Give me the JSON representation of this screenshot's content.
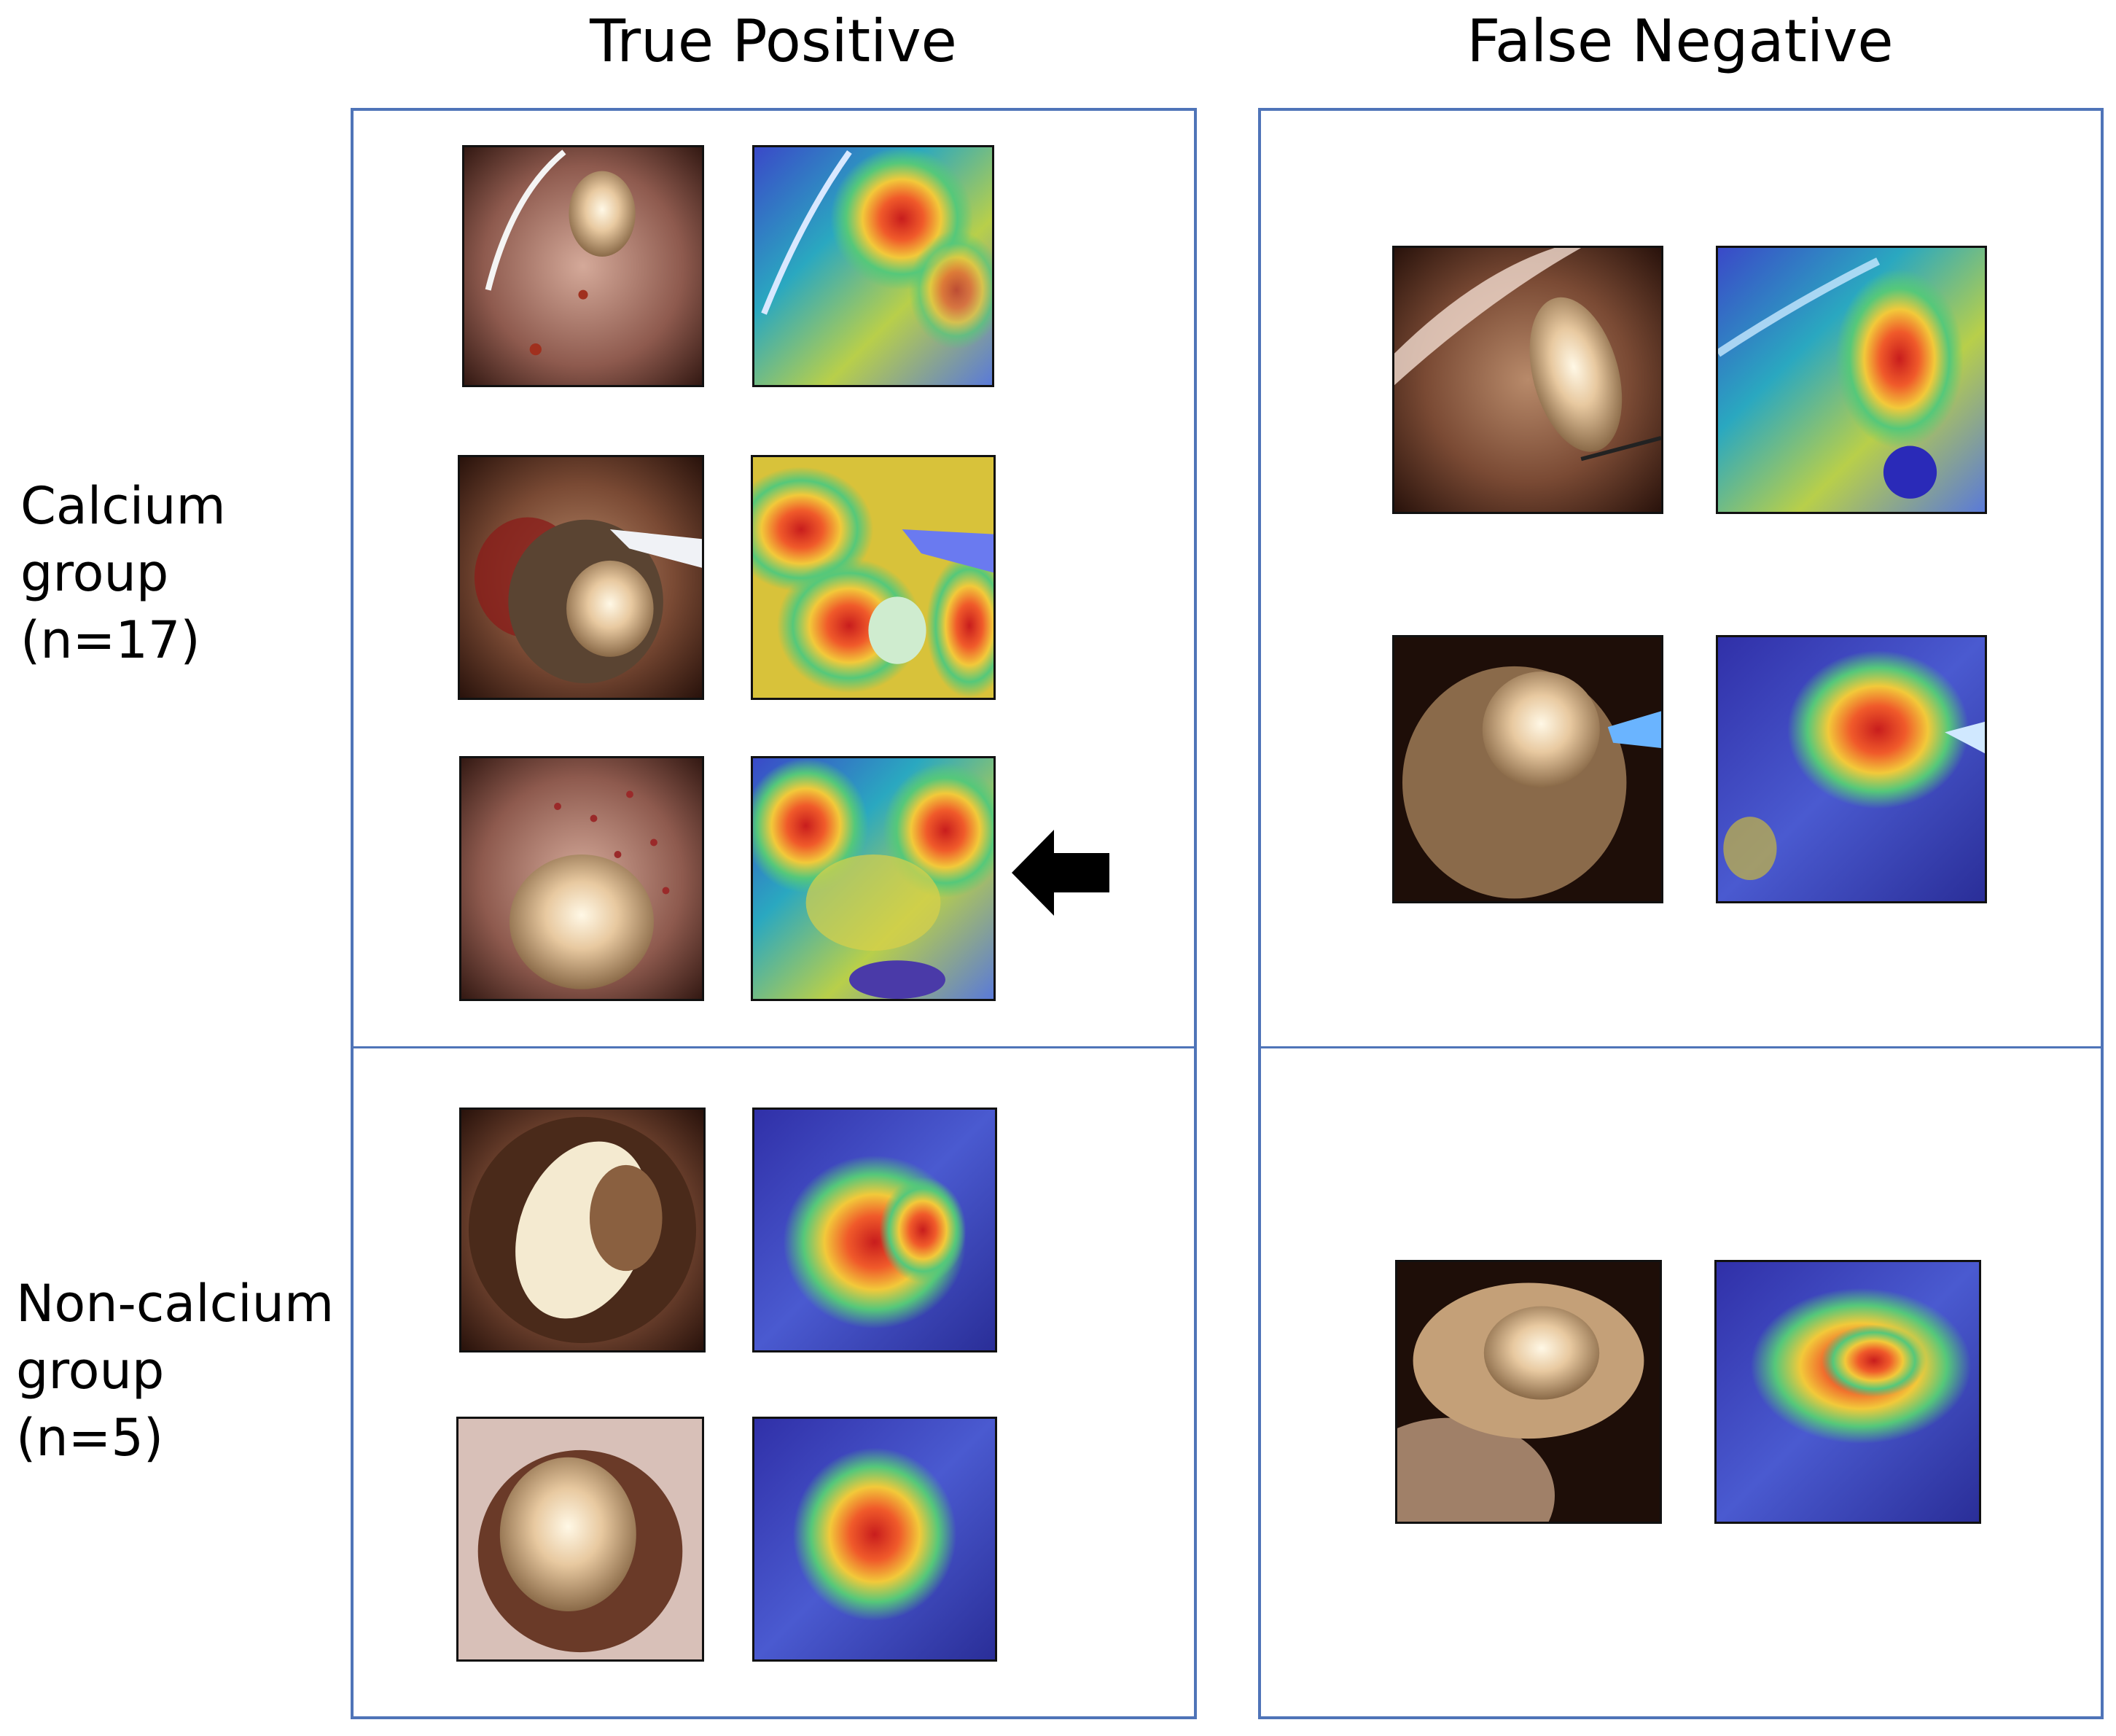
{
  "columns": {
    "true_positive": "True Positive",
    "false_negative": "False Negative"
  },
  "rows": {
    "calcium": "Calcium\ngroup\n(n=17)",
    "non_calcium": "Non-calcium\ngroup\n(n=5)"
  },
  "colors": {
    "border": "#4f74b8",
    "arrow": "#000000"
  },
  "icons": {
    "pointer": "left-arrow-icon"
  }
}
